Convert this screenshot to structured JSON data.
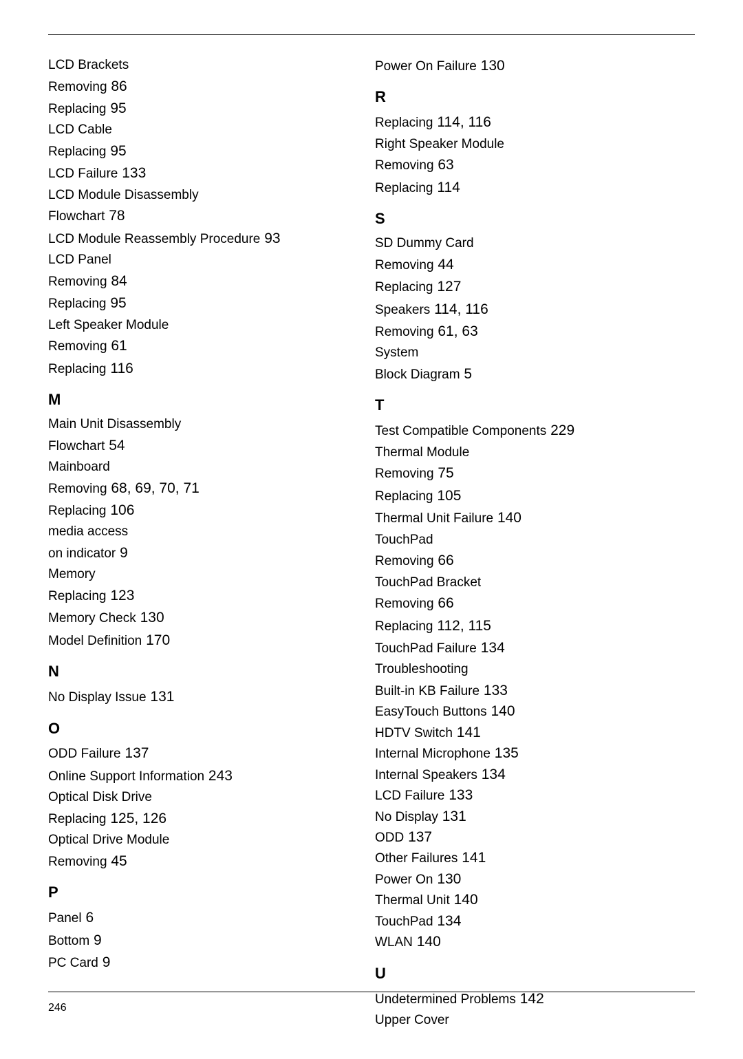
{
  "pageNumber": "246",
  "columns": [
    [
      {
        "type": "entry",
        "level": 0,
        "text": "LCD Brackets",
        "page": ""
      },
      {
        "type": "entry",
        "level": 1,
        "text": "Removing",
        "page": "86"
      },
      {
        "type": "entry",
        "level": 1,
        "text": "Replacing",
        "page": "95"
      },
      {
        "type": "entry",
        "level": 0,
        "text": "LCD Cable",
        "page": ""
      },
      {
        "type": "entry",
        "level": 1,
        "text": "Replacing",
        "page": "95"
      },
      {
        "type": "entry",
        "level": 0,
        "text": "LCD Failure",
        "page": "133"
      },
      {
        "type": "entry",
        "level": 0,
        "text": "LCD Module Disassembly",
        "page": ""
      },
      {
        "type": "entry",
        "level": 1,
        "text": "Flowchart",
        "page": "78"
      },
      {
        "type": "entry",
        "level": 0,
        "text": "LCD Module Reassembly Procedure",
        "page": "93"
      },
      {
        "type": "entry",
        "level": 0,
        "text": "LCD Panel",
        "page": ""
      },
      {
        "type": "entry",
        "level": 1,
        "text": "Removing",
        "page": "84"
      },
      {
        "type": "entry",
        "level": 1,
        "text": "Replacing",
        "page": "95"
      },
      {
        "type": "entry",
        "level": 0,
        "text": "Left Speaker Module",
        "page": ""
      },
      {
        "type": "entry",
        "level": 1,
        "text": "Removing",
        "page": "61"
      },
      {
        "type": "entry",
        "level": 1,
        "text": "Replacing",
        "page": "116"
      },
      {
        "type": "letter",
        "text": "M"
      },
      {
        "type": "entry",
        "level": 0,
        "text": "Main Unit Disassembly",
        "page": ""
      },
      {
        "type": "entry",
        "level": 1,
        "text": "Flowchart",
        "page": "54"
      },
      {
        "type": "entry",
        "level": 0,
        "text": "Mainboard",
        "page": ""
      },
      {
        "type": "entry",
        "level": 1,
        "text": "Removing",
        "page": "68, 69, 70, 71"
      },
      {
        "type": "entry",
        "level": 1,
        "text": "Replacing",
        "page": "106"
      },
      {
        "type": "entry",
        "level": 0,
        "text": "media access",
        "page": ""
      },
      {
        "type": "entry",
        "level": 1,
        "text": "on indicator",
        "page": "9"
      },
      {
        "type": "entry",
        "level": 0,
        "text": "Memory",
        "page": ""
      },
      {
        "type": "entry",
        "level": 1,
        "text": "Replacing",
        "page": "123"
      },
      {
        "type": "entry",
        "level": 0,
        "text": "Memory Check",
        "page": "130"
      },
      {
        "type": "entry",
        "level": 0,
        "text": "Model Definition",
        "page": "170"
      },
      {
        "type": "letter",
        "text": "N"
      },
      {
        "type": "entry",
        "level": 0,
        "text": "No Display Issue",
        "page": "131"
      },
      {
        "type": "letter",
        "text": "O"
      },
      {
        "type": "entry",
        "level": 0,
        "text": "ODD Failure",
        "page": "137"
      },
      {
        "type": "entry",
        "level": 0,
        "text": "Online Support Information",
        "page": "243"
      },
      {
        "type": "entry",
        "level": 0,
        "text": "Optical Disk Drive",
        "page": ""
      },
      {
        "type": "entry",
        "level": 1,
        "text": "Replacing",
        "page": "125, 126"
      },
      {
        "type": "entry",
        "level": 0,
        "text": "Optical Drive Module",
        "page": ""
      },
      {
        "type": "entry",
        "level": 1,
        "text": "Removing",
        "page": "45"
      },
      {
        "type": "letter",
        "text": "P"
      },
      {
        "type": "entry",
        "level": 0,
        "text": "Panel",
        "page": "6"
      },
      {
        "type": "entry",
        "level": 1,
        "text": "Bottom",
        "page": "9"
      },
      {
        "type": "entry",
        "level": 0,
        "text": "PC Card",
        "page": "9"
      }
    ],
    [
      {
        "type": "entry",
        "level": 1,
        "text": "Power On Failure",
        "page": "130"
      },
      {
        "type": "letter",
        "text": "R"
      },
      {
        "type": "entry",
        "level": 0,
        "text": "Replacing",
        "page": "114, 116"
      },
      {
        "type": "entry",
        "level": 0,
        "text": "Right Speaker Module",
        "page": ""
      },
      {
        "type": "entry",
        "level": 1,
        "text": "Removing",
        "page": "63"
      },
      {
        "type": "entry",
        "level": 1,
        "text": "Replacing",
        "page": "114"
      },
      {
        "type": "letter",
        "text": "S"
      },
      {
        "type": "entry",
        "level": 0,
        "text": "SD Dummy Card",
        "page": ""
      },
      {
        "type": "entry",
        "level": 1,
        "text": "Removing",
        "page": "44"
      },
      {
        "type": "entry",
        "level": 1,
        "text": "Replacing",
        "page": "127"
      },
      {
        "type": "entry",
        "level": 0,
        "text": "Speakers",
        "page": "114, 116"
      },
      {
        "type": "entry",
        "level": 1,
        "text": "Removing",
        "page": "61, 63"
      },
      {
        "type": "entry",
        "level": 0,
        "text": "System",
        "page": ""
      },
      {
        "type": "entry",
        "level": 1,
        "text": "Block Diagram",
        "page": "5"
      },
      {
        "type": "letter",
        "text": "T"
      },
      {
        "type": "entry",
        "level": 0,
        "text": "Test Compatible Components",
        "page": "229"
      },
      {
        "type": "entry",
        "level": 0,
        "text": "Thermal Module",
        "page": ""
      },
      {
        "type": "entry",
        "level": 1,
        "text": "Removing",
        "page": "75"
      },
      {
        "type": "entry",
        "level": 1,
        "text": "Replacing",
        "page": "105"
      },
      {
        "type": "entry",
        "level": 0,
        "text": "Thermal Unit Failure",
        "page": "140"
      },
      {
        "type": "entry",
        "level": 0,
        "text": "TouchPad",
        "page": ""
      },
      {
        "type": "entry",
        "level": 1,
        "text": "Removing",
        "page": "66"
      },
      {
        "type": "entry",
        "level": 0,
        "text": "TouchPad Bracket",
        "page": ""
      },
      {
        "type": "entry",
        "level": 1,
        "text": "Removing",
        "page": "66"
      },
      {
        "type": "entry",
        "level": 1,
        "text": "Replacing",
        "page": "112, 115"
      },
      {
        "type": "entry",
        "level": 0,
        "text": "TouchPad Failure",
        "page": "134"
      },
      {
        "type": "entry",
        "level": 0,
        "text": "Troubleshooting",
        "page": ""
      },
      {
        "type": "entry-tight",
        "level": 1,
        "text": "Built-in KB Failure",
        "page": "133"
      },
      {
        "type": "entry-tight",
        "level": 1,
        "text": "EasyTouch Buttons",
        "page": "140"
      },
      {
        "type": "entry-tight",
        "level": 1,
        "text": "HDTV Switch",
        "page": "141"
      },
      {
        "type": "entry-tight",
        "level": 1,
        "text": "Internal Microphone",
        "page": "135"
      },
      {
        "type": "entry-tight",
        "level": 1,
        "text": "Internal Speakers",
        "page": "134"
      },
      {
        "type": "entry-tight",
        "level": 1,
        "text": "LCD Failure",
        "page": "133"
      },
      {
        "type": "entry-tight",
        "level": 1,
        "text": "No Display",
        "page": "131"
      },
      {
        "type": "entry-tight",
        "level": 1,
        "text": "ODD",
        "page": "137"
      },
      {
        "type": "entry-tight",
        "level": 1,
        "text": "Other Failures",
        "page": "141"
      },
      {
        "type": "entry-tight",
        "level": 1,
        "text": "Power On",
        "page": "130"
      },
      {
        "type": "entry-tight",
        "level": 1,
        "text": "Thermal Unit",
        "page": "140"
      },
      {
        "type": "entry-tight",
        "level": 1,
        "text": "TouchPad",
        "page": "134"
      },
      {
        "type": "entry-tight",
        "level": 1,
        "text": "WLAN",
        "page": "140"
      },
      {
        "type": "letter",
        "text": "U"
      },
      {
        "type": "entry",
        "level": 0,
        "text": "Undetermined Problems",
        "page": "142"
      },
      {
        "type": "entry",
        "level": 0,
        "text": "Upper Cover",
        "page": ""
      }
    ]
  ]
}
